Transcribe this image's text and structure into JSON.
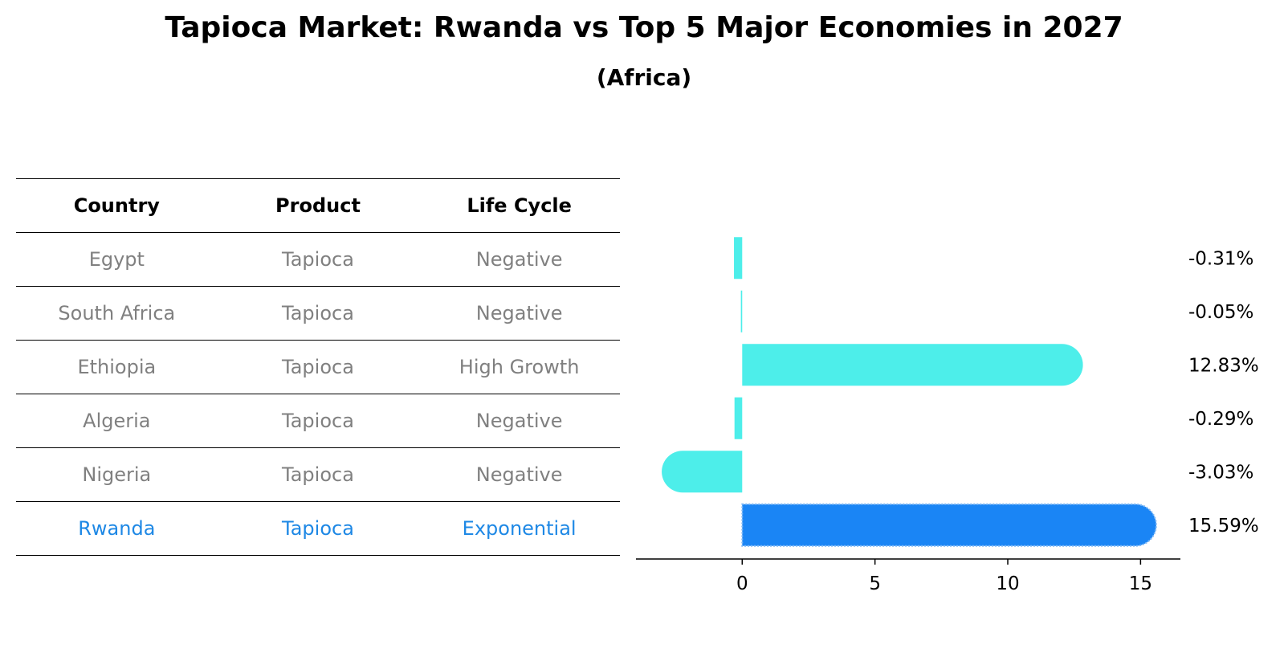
{
  "title": "Tapioca Market: Rwanda vs Top 5 Major Economies in 2027",
  "subtitle": "(Africa)",
  "table": {
    "headers": [
      "Country",
      "Product",
      "Life Cycle"
    ],
    "rows": [
      {
        "country": "Egypt",
        "product": "Tapioca",
        "life_cycle": "Negative"
      },
      {
        "country": "South Africa",
        "product": "Tapioca",
        "life_cycle": "Negative"
      },
      {
        "country": "Ethiopia",
        "product": "Tapioca",
        "life_cycle": "High Growth"
      },
      {
        "country": "Algeria",
        "product": "Tapioca",
        "life_cycle": "Negative"
      },
      {
        "country": "Nigeria",
        "product": "Tapioca",
        "life_cycle": "Negative"
      },
      {
        "country": "Rwanda",
        "product": "Tapioca",
        "life_cycle": "Exponential"
      }
    ]
  },
  "chart_data": {
    "type": "bar",
    "orientation": "horizontal",
    "categories": [
      "Egypt",
      "South Africa",
      "Ethiopia",
      "Algeria",
      "Nigeria",
      "Rwanda"
    ],
    "values": [
      -0.31,
      -0.05,
      12.83,
      -0.29,
      -3.03,
      15.59
    ],
    "value_labels": [
      "-0.31%",
      "-0.05%",
      "12.83%",
      "-0.29%",
      "-3.03%",
      "15.59%"
    ],
    "highlight": "Rwanda",
    "xlim": [
      -4,
      16.5
    ],
    "xticks": [
      0,
      5,
      10,
      15
    ],
    "grid": false,
    "colors": {
      "bar": "#4deeea",
      "highlight": "#1a85f5",
      "text_muted": "#808080",
      "highlight_text": "#1e88e5"
    }
  }
}
